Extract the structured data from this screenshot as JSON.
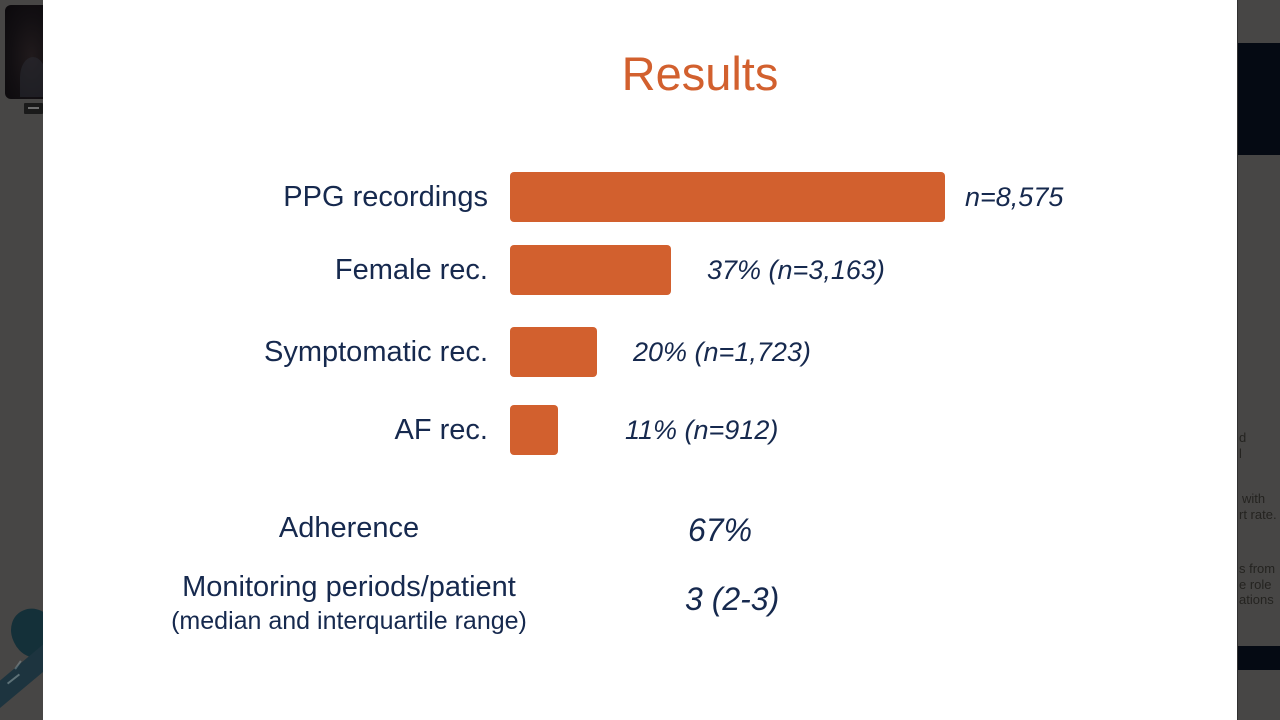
{
  "slide": {
    "title": "Results",
    "colors": {
      "accent_orange": "#d2602e",
      "text_navy": "#16294e",
      "panel_gray": "#474645",
      "panel_navy": "#050a13"
    }
  },
  "chart_data": {
    "type": "bar",
    "orientation": "horizontal",
    "title": "Results",
    "categories": [
      "PPG recordings",
      "Female rec.",
      "Symptomatic rec.",
      "AF rec."
    ],
    "percents": [
      100,
      37,
      20,
      11
    ],
    "counts": [
      8575,
      3163,
      1723,
      912
    ],
    "value_labels": [
      "n=8,575",
      "37% (n=3,163)",
      "20% (n=1,723)",
      "11% (n=912)"
    ],
    "bar_color": "#d2602e",
    "axis": "none",
    "legend": "none"
  },
  "stats": {
    "rows": [
      {
        "label": "Adherence",
        "sublabel": "",
        "value": "67%"
      },
      {
        "label": "Monitoring periods/patient",
        "sublabel": "(median and interquartile range)",
        "value": "3 (2-3)"
      }
    ]
  },
  "right_panel": {
    "text_fragments": {
      "group1": {
        "line1": "d",
        "line2": "l"
      },
      "group2": {
        "line1": "with",
        "line2": "rt rate."
      },
      "group3": {
        "line1": "s from",
        "line2": "e role",
        "line3": "ations"
      }
    }
  }
}
